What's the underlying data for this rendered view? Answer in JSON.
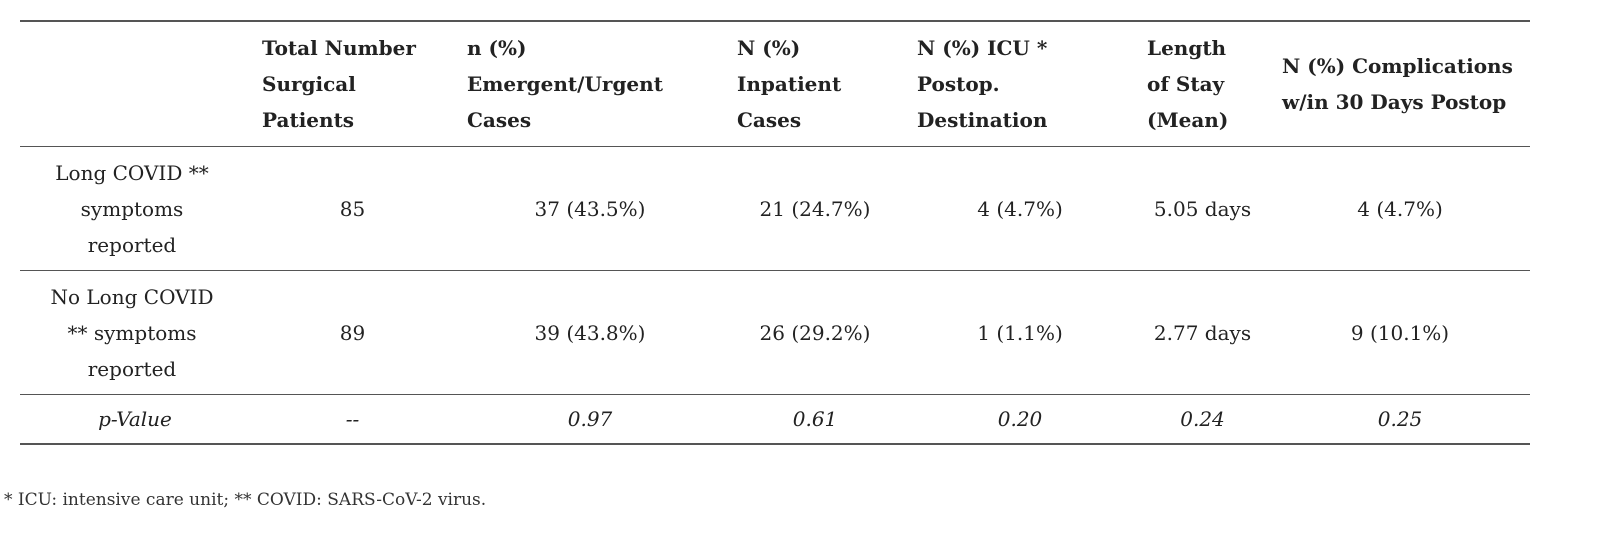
{
  "table": {
    "headers": [
      "",
      "Total Number Surgical Patients",
      "n (%) Emergent/Urgent Cases",
      "N (%) Inpatient Cases",
      "N (%) ICU * Postop. Destination",
      "Length of Stay (Mean)",
      "N (%) Complications w/in 30 Days Postop"
    ],
    "rows": [
      [
        "Long COVID ** symptoms reported",
        "85",
        "37 (43.5%)",
        "21 (24.7%)",
        "4 (4.7%)",
        "5.05 days",
        "4 (4.7%)"
      ],
      [
        "No Long COVID ** symptoms reported",
        "89",
        "39 (43.8%)",
        "26 (29.2%)",
        "1 (1.1%)",
        "2.77 days",
        "9 (10.1%)"
      ],
      [
        "p-Value",
        "--",
        "0.97",
        "0.61",
        "0.20",
        "0.24",
        "0.25"
      ]
    ]
  },
  "footnote": "* ICU: intensive care unit; ** COVID: SARS-CoV-2 virus."
}
